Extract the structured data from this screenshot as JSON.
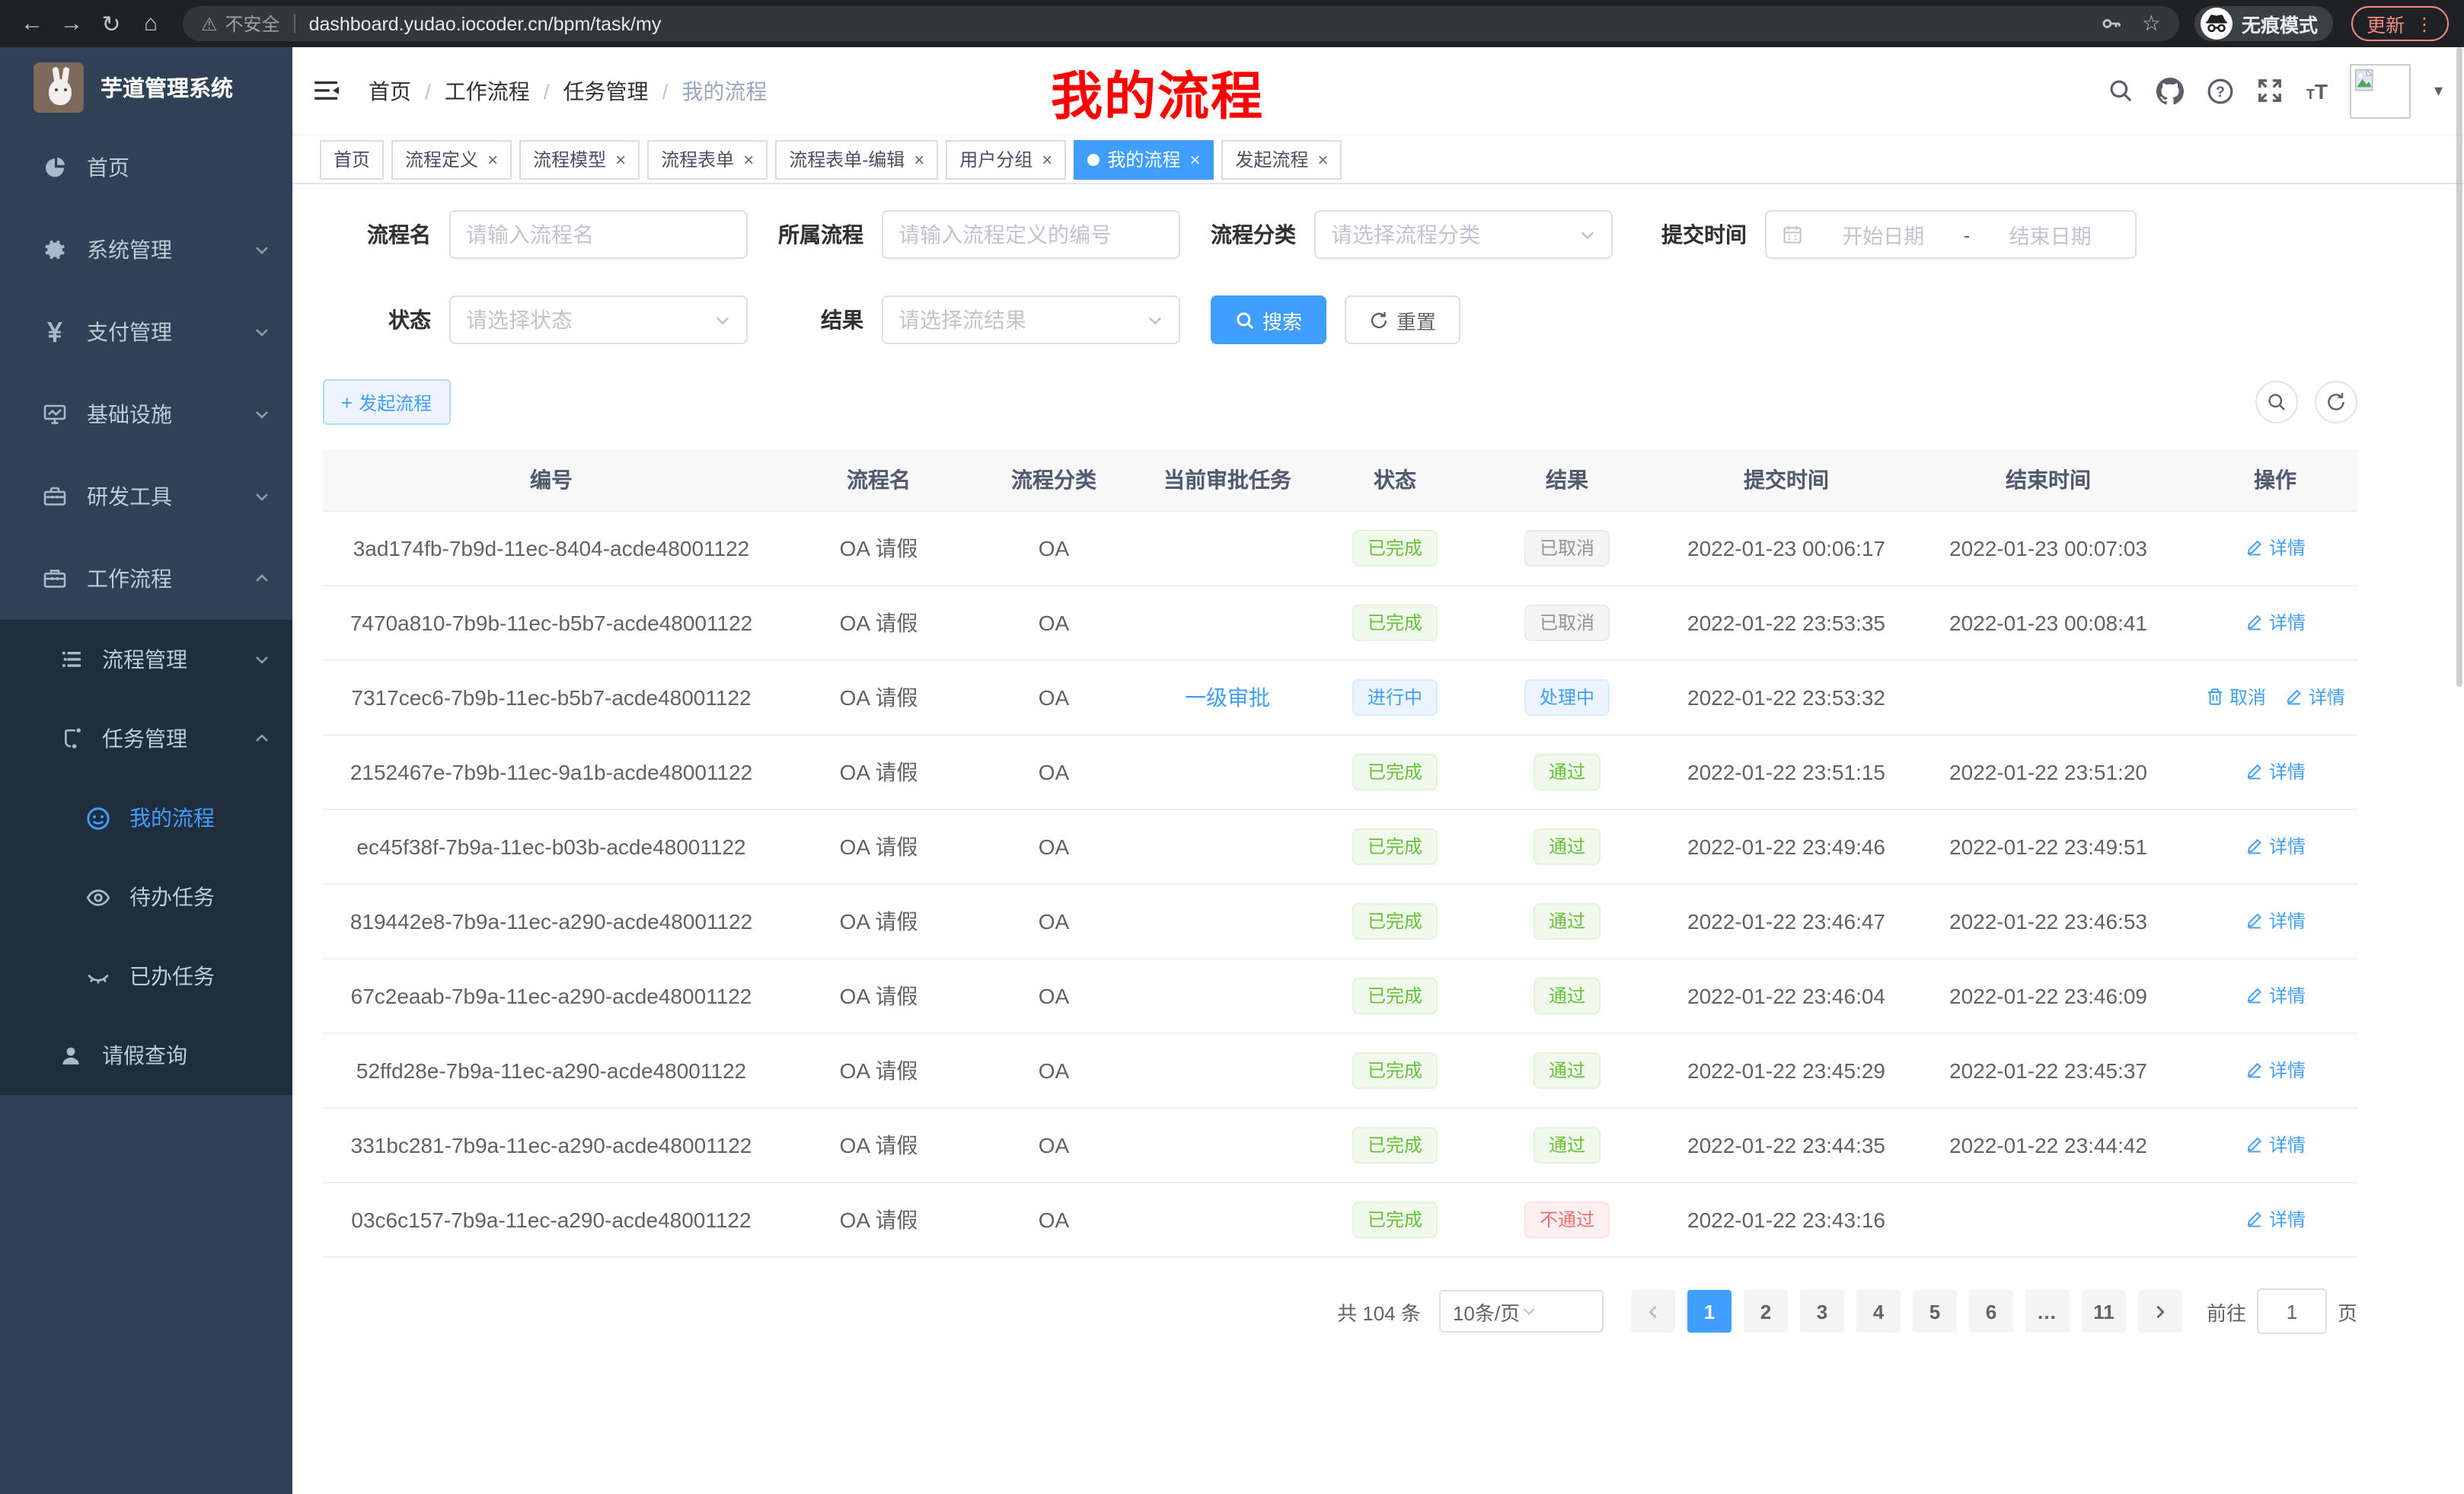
{
  "browser": {
    "security_warning": "不安全",
    "url": "dashboard.yudao.iocoder.cn/bpm/task/my",
    "incognito_label": "无痕模式",
    "update_label": "更新"
  },
  "icons": {
    "back": "←",
    "forward": "→",
    "reload": "↻",
    "home": "⌂",
    "not_secure": "⚠",
    "bookmark_star": "☆",
    "menu_dots": "⋮",
    "avatar_caret": "▾",
    "plus": "+",
    "gear": "⚙",
    "yen": "¥",
    "tt_small": "T",
    "tt_large": "T"
  },
  "sidebar": {
    "logo_title": "芋道管理系统",
    "menu": [
      {
        "label": "首页",
        "icon": "dashboard-icon",
        "arrow": ""
      },
      {
        "label": "系统管理",
        "icon": "gear-icon",
        "arrow": "down"
      },
      {
        "label": "支付管理",
        "icon": "yen-icon",
        "arrow": "down"
      },
      {
        "label": "基础设施",
        "icon": "monitor-icon",
        "arrow": "down"
      },
      {
        "label": "研发工具",
        "icon": "toolbox-icon",
        "arrow": "down"
      },
      {
        "label": "工作流程",
        "icon": "briefcase-icon",
        "arrow": "up"
      }
    ],
    "submenu": [
      {
        "label": "流程管理",
        "icon": "list-icon",
        "arrow": "down",
        "indent": 1,
        "active": false
      },
      {
        "label": "任务管理",
        "icon": "flow-icon",
        "arrow": "up",
        "indent": 1,
        "active": false
      },
      {
        "label": "我的流程",
        "icon": "face-icon",
        "arrow": "",
        "indent": 2,
        "active": true
      },
      {
        "label": "待办任务",
        "icon": "eye-icon",
        "arrow": "",
        "indent": 2,
        "active": false
      },
      {
        "label": "已办任务",
        "icon": "eye-closed-icon",
        "arrow": "",
        "indent": 2,
        "active": false
      },
      {
        "label": "请假查询",
        "icon": "user-icon",
        "arrow": "",
        "indent": 1,
        "active": false
      }
    ]
  },
  "header": {
    "breadcrumb": [
      "首页",
      "工作流程",
      "任务管理",
      "我的流程"
    ],
    "breadcrumb_separator": "/",
    "overlay_title": "我的流程",
    "overlay_color": "#ff0000"
  },
  "tabs": [
    {
      "label": "首页",
      "closable": false,
      "active": false
    },
    {
      "label": "流程定义",
      "closable": true,
      "active": false
    },
    {
      "label": "流程模型",
      "closable": true,
      "active": false
    },
    {
      "label": "流程表单",
      "closable": true,
      "active": false
    },
    {
      "label": "流程表单-编辑",
      "closable": true,
      "active": false
    },
    {
      "label": "用户分组",
      "closable": true,
      "active": false
    },
    {
      "label": "我的流程",
      "closable": true,
      "active": true
    },
    {
      "label": "发起流程",
      "closable": true,
      "active": false
    }
  ],
  "filters": {
    "name_label": "流程名",
    "name_placeholder": "请输入流程名",
    "definition_label": "所属流程",
    "definition_placeholder": "请输入流程定义的编号",
    "category_label": "流程分类",
    "category_placeholder": "请选择流程分类",
    "submit_time_label": "提交时间",
    "start_date_placeholder": "开始日期",
    "date_separator": "-",
    "end_date_placeholder": "结束日期",
    "status_label": "状态",
    "status_placeholder": "请选择状态",
    "result_label": "结果",
    "result_placeholder": "请选择流结果",
    "search_button": "搜索",
    "reset_button": "重置"
  },
  "toolbar": {
    "create_button": "发起流程"
  },
  "table": {
    "columns": [
      "编号",
      "流程名",
      "流程分类",
      "当前审批任务",
      "状态",
      "结果",
      "提交时间",
      "结束时间",
      "操作"
    ],
    "rows": [
      {
        "id": "3ad174fb-7b9d-11ec-8404-acde48001122",
        "name": "OA 请假",
        "category": "OA",
        "task": "",
        "status": {
          "text": "已完成",
          "type": "success"
        },
        "result": {
          "text": "已取消",
          "type": "info"
        },
        "submit_time": "2022-01-23 00:06:17",
        "end_time": "2022-01-23 00:07:03",
        "actions": [
          {
            "label": "详情",
            "icon": "edit-icon"
          }
        ]
      },
      {
        "id": "7470a810-7b9b-11ec-b5b7-acde48001122",
        "name": "OA 请假",
        "category": "OA",
        "task": "",
        "status": {
          "text": "已完成",
          "type": "success"
        },
        "result": {
          "text": "已取消",
          "type": "info"
        },
        "submit_time": "2022-01-22 23:53:35",
        "end_time": "2022-01-23 00:08:41",
        "actions": [
          {
            "label": "详情",
            "icon": "edit-icon"
          }
        ]
      },
      {
        "id": "7317cec6-7b9b-11ec-b5b7-acde48001122",
        "name": "OA 请假",
        "category": "OA",
        "task": "一级审批",
        "status": {
          "text": "进行中",
          "type": "primary"
        },
        "result": {
          "text": "处理中",
          "type": "primary"
        },
        "submit_time": "2022-01-22 23:53:32",
        "end_time": "",
        "actions": [
          {
            "label": "取消",
            "icon": "trash-icon"
          },
          {
            "label": "详情",
            "icon": "edit-icon"
          }
        ]
      },
      {
        "id": "2152467e-7b9b-11ec-9a1b-acde48001122",
        "name": "OA 请假",
        "category": "OA",
        "task": "",
        "status": {
          "text": "已完成",
          "type": "success"
        },
        "result": {
          "text": "通过",
          "type": "success"
        },
        "submit_time": "2022-01-22 23:51:15",
        "end_time": "2022-01-22 23:51:20",
        "actions": [
          {
            "label": "详情",
            "icon": "edit-icon"
          }
        ]
      },
      {
        "id": "ec45f38f-7b9a-11ec-b03b-acde48001122",
        "name": "OA 请假",
        "category": "OA",
        "task": "",
        "status": {
          "text": "已完成",
          "type": "success"
        },
        "result": {
          "text": "通过",
          "type": "success"
        },
        "submit_time": "2022-01-22 23:49:46",
        "end_time": "2022-01-22 23:49:51",
        "actions": [
          {
            "label": "详情",
            "icon": "edit-icon"
          }
        ]
      },
      {
        "id": "819442e8-7b9a-11ec-a290-acde48001122",
        "name": "OA 请假",
        "category": "OA",
        "task": "",
        "status": {
          "text": "已完成",
          "type": "success"
        },
        "result": {
          "text": "通过",
          "type": "success"
        },
        "submit_time": "2022-01-22 23:46:47",
        "end_time": "2022-01-22 23:46:53",
        "actions": [
          {
            "label": "详情",
            "icon": "edit-icon"
          }
        ]
      },
      {
        "id": "67c2eaab-7b9a-11ec-a290-acde48001122",
        "name": "OA 请假",
        "category": "OA",
        "task": "",
        "status": {
          "text": "已完成",
          "type": "success"
        },
        "result": {
          "text": "通过",
          "type": "success"
        },
        "submit_time": "2022-01-22 23:46:04",
        "end_time": "2022-01-22 23:46:09",
        "actions": [
          {
            "label": "详情",
            "icon": "edit-icon"
          }
        ]
      },
      {
        "id": "52ffd28e-7b9a-11ec-a290-acde48001122",
        "name": "OA 请假",
        "category": "OA",
        "task": "",
        "status": {
          "text": "已完成",
          "type": "success"
        },
        "result": {
          "text": "通过",
          "type": "success"
        },
        "submit_time": "2022-01-22 23:45:29",
        "end_time": "2022-01-22 23:45:37",
        "actions": [
          {
            "label": "详情",
            "icon": "edit-icon"
          }
        ]
      },
      {
        "id": "331bc281-7b9a-11ec-a290-acde48001122",
        "name": "OA 请假",
        "category": "OA",
        "task": "",
        "status": {
          "text": "已完成",
          "type": "success"
        },
        "result": {
          "text": "通过",
          "type": "success"
        },
        "submit_time": "2022-01-22 23:44:35",
        "end_time": "2022-01-22 23:44:42",
        "actions": [
          {
            "label": "详情",
            "icon": "edit-icon"
          }
        ]
      },
      {
        "id": "03c6c157-7b9a-11ec-a290-acde48001122",
        "name": "OA 请假",
        "category": "OA",
        "task": "",
        "status": {
          "text": "已完成",
          "type": "success"
        },
        "result": {
          "text": "不通过",
          "type": "danger"
        },
        "submit_time": "2022-01-22 23:43:16",
        "end_time": "",
        "actions": [
          {
            "label": "详情",
            "icon": "edit-icon"
          }
        ]
      }
    ]
  },
  "pagination": {
    "total_text": "共 104 条",
    "page_size": "10条/页",
    "pages": [
      "1",
      "2",
      "3",
      "4",
      "5",
      "6",
      "…",
      "11"
    ],
    "active_page": "1",
    "jump_label_prefix": "前往",
    "jump_value": "1",
    "jump_label_suffix": "页"
  },
  "colors": {
    "primary": "#409eff",
    "success": "#67c23a",
    "info": "#909399",
    "danger": "#f56c6c",
    "sidebar_bg": "#304156",
    "submenu_bg": "#1f2d3d",
    "overlay_red": "#ff0000",
    "update_button": "#f28b82"
  }
}
